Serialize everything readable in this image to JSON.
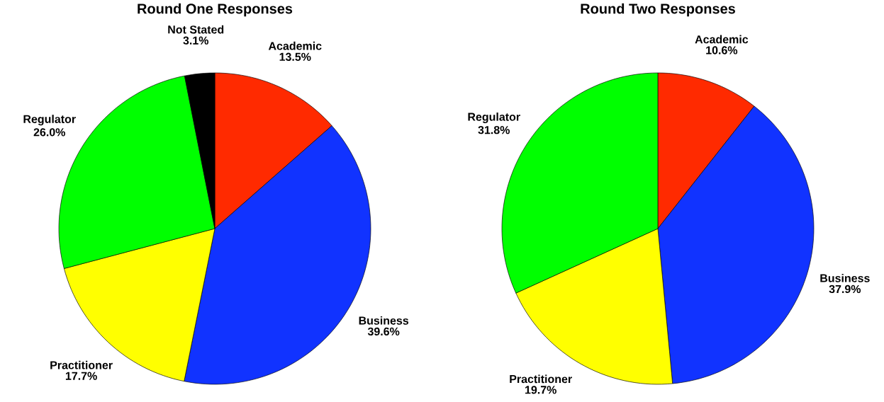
{
  "chart_data": [
    {
      "type": "pie",
      "title": "Round One Responses",
      "categories": [
        "Academic",
        "Business",
        "Practitioner",
        "Regulator",
        "Not Stated"
      ],
      "values": [
        13.5,
        39.6,
        17.7,
        26.0,
        3.1
      ],
      "colors": [
        "#ff2a00",
        "#1133ff",
        "#ffff00",
        "#00ff00",
        "#000000"
      ],
      "data_labels": true,
      "value_labels": [
        "13.5%",
        "39.6%",
        "17.7%",
        "26.0%",
        "3.1%"
      ]
    },
    {
      "type": "pie",
      "title": "Round Two Responses",
      "categories": [
        "Academic",
        "Business",
        "Practitioner",
        "Regulator"
      ],
      "values": [
        10.6,
        37.9,
        19.7,
        31.8
      ],
      "colors": [
        "#ff2a00",
        "#1133ff",
        "#ffff00",
        "#00ff00"
      ],
      "data_labels": true,
      "value_labels": [
        "10.6%",
        "37.9%",
        "19.7%",
        "31.8%"
      ]
    }
  ]
}
